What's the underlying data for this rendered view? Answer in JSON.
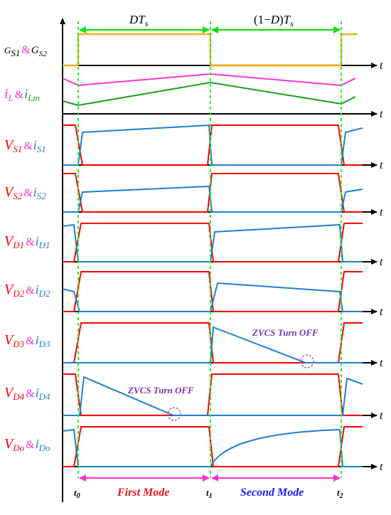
{
  "colors": {
    "gate": "#f0b020",
    "inductor_iL": "#ff33cc",
    "inductor_iLm": "#1aa01a",
    "voltage": "#ff0000",
    "current": "#1f7fd0",
    "mode_first": "#e8141e",
    "mode_second": "#1a1aff",
    "arrow_top": "#00e000",
    "arrow_bottom": "#ff33cc",
    "annotation": "#7b2fa6"
  },
  "top": {
    "interval1": "DT_s",
    "interval2": "(1−D)T_s"
  },
  "time_axis_label": "t",
  "rows": [
    {
      "v": "G",
      "v_sub": "S1",
      "amp": "&",
      "i": "G",
      "i_sub": "S2",
      "v_color": "#000000",
      "i_color": "#000000",
      "amp_color": "#ff33cc"
    },
    {
      "v": "i",
      "v_sub": "L",
      "amp": "&",
      "i": "i",
      "i_sub": "Lm",
      "v_color": "#ff33cc",
      "i_color": "#1aa01a",
      "amp_color": "#ff33cc"
    },
    {
      "v": "V",
      "v_sub": "S1",
      "amp": "&",
      "i": "i",
      "i_sub": "S1",
      "v_color": "#ff0000",
      "i_color": "#1f7fd0",
      "amp_color": "#ff33cc"
    },
    {
      "v": "V",
      "v_sub": "S2",
      "amp": "&",
      "i": "i",
      "i_sub": "S2",
      "v_color": "#ff0000",
      "i_color": "#1f7fd0",
      "amp_color": "#ff33cc"
    },
    {
      "v": "V",
      "v_sub": "D1",
      "amp": "&",
      "i": "i",
      "i_sub": "D1",
      "v_color": "#ff0000",
      "i_color": "#1f7fd0",
      "amp_color": "#ff33cc"
    },
    {
      "v": "V",
      "v_sub": "D2",
      "amp": "&",
      "i": "i",
      "i_sub": "D2",
      "v_color": "#ff0000",
      "i_color": "#1f7fd0",
      "amp_color": "#ff33cc"
    },
    {
      "v": "V",
      "v_sub": "D3",
      "amp": "&",
      "i": "i",
      "i_sub": "D3",
      "v_color": "#ff0000",
      "i_color": "#1f7fd0",
      "amp_color": "#ff33cc"
    },
    {
      "v": "V",
      "v_sub": "D4",
      "amp": "&",
      "i": "i",
      "i_sub": "D4",
      "v_color": "#ff0000",
      "i_color": "#1f7fd0",
      "amp_color": "#ff33cc"
    },
    {
      "v": "V",
      "v_sub": "Do",
      "amp": "&",
      "i": "i",
      "i_sub": "Do",
      "v_color": "#ff0000",
      "i_color": "#1f7fd0",
      "amp_color": "#ff33cc"
    }
  ],
  "annotations": {
    "zvcs_d3": "ZVCS Turn OFF",
    "zvcs_d4": "ZVCS Turn OFF"
  },
  "ticks": {
    "t0": "t",
    "t0_sub": "0",
    "t1": "t",
    "t1_sub": "1",
    "t2": "t",
    "t2_sub": "2"
  },
  "modes": {
    "first": "First Mode",
    "second": "Second Mode"
  }
}
